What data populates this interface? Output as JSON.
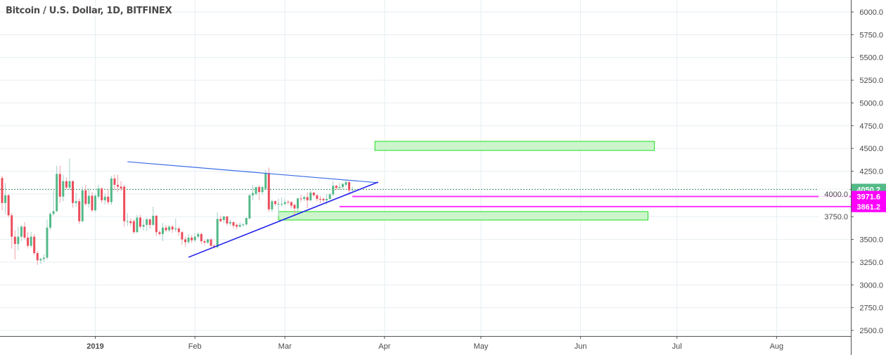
{
  "header": {
    "title": "Bitcoin / U.S. Dollar, 1D, BITFINEX"
  },
  "chart_data": {
    "type": "candlestick",
    "title": "Bitcoin / U.S. Dollar, 1D, BITFINEX",
    "ylim": [
      2450,
      6050
    ],
    "xlim": [
      "2018-12-03",
      "2019-08-23"
    ],
    "y_ticks": [
      "6000.0",
      "5750.0",
      "5500.0",
      "5250.0",
      "5000.0",
      "4750.0",
      "4500.0",
      "4250.0",
      "4000.0",
      "3750.0",
      "3500.0",
      "3250.0",
      "3000.0",
      "2750.0",
      "2500.0"
    ],
    "x_ticks": [
      {
        "label": "2019",
        "date": "2019-01-01"
      },
      {
        "label": "Feb",
        "date": "2019-02-01"
      },
      {
        "label": "Mar",
        "date": "2019-03-01"
      },
      {
        "label": "Apr",
        "date": "2019-04-01"
      },
      {
        "label": "May",
        "date": "2019-05-01"
      },
      {
        "label": "Jun",
        "date": "2019-06-01"
      },
      {
        "label": "Jul",
        "date": "2019-07-01"
      },
      {
        "label": "Aug",
        "date": "2019-08-01"
      }
    ],
    "grid": true,
    "colors": {
      "up": "#53b987",
      "down": "#eb4d5c",
      "trendline_upper": "#3d6fe8",
      "trendline_lower": "#2222ee",
      "zone_fill": "#ccf5cc",
      "zone_border": "#22dd22",
      "level": "#ff33ff",
      "last_price": "#53b987"
    },
    "candle_fields": [
      "date",
      "open",
      "high",
      "low",
      "close"
    ],
    "candles": [
      [
        "2018-12-03",
        4175,
        4200,
        3820,
        3900
      ],
      [
        "2018-12-04",
        3900,
        4120,
        3780,
        3985
      ],
      [
        "2018-12-05",
        3985,
        4000,
        3740,
        3765
      ],
      [
        "2018-12-06",
        3765,
        3790,
        3400,
        3530
      ],
      [
        "2018-12-07",
        3530,
        3600,
        3280,
        3450
      ],
      [
        "2018-12-08",
        3450,
        3640,
        3380,
        3530
      ],
      [
        "2018-12-09",
        3530,
        3660,
        3480,
        3640
      ],
      [
        "2018-12-10",
        3640,
        3690,
        3500,
        3520
      ],
      [
        "2018-12-11",
        3520,
        3580,
        3400,
        3430
      ],
      [
        "2018-12-12",
        3430,
        3580,
        3410,
        3530
      ],
      [
        "2018-12-13",
        3530,
        3560,
        3330,
        3350
      ],
      [
        "2018-12-14",
        3350,
        3370,
        3220,
        3270
      ],
      [
        "2018-12-15",
        3270,
        3300,
        3230,
        3285
      ],
      [
        "2018-12-16",
        3285,
        3340,
        3250,
        3300
      ],
      [
        "2018-12-17",
        3300,
        3720,
        3280,
        3630
      ],
      [
        "2018-12-18",
        3630,
        3800,
        3600,
        3780
      ],
      [
        "2018-12-19",
        3780,
        4050,
        3760,
        3810
      ],
      [
        "2018-12-20",
        3810,
        4310,
        3800,
        4220
      ],
      [
        "2018-12-21",
        4220,
        4310,
        3900,
        3970
      ],
      [
        "2018-12-22",
        3970,
        4210,
        3920,
        4140
      ],
      [
        "2018-12-23",
        4140,
        4180,
        4050,
        4070
      ],
      [
        "2018-12-24",
        4070,
        4390,
        4040,
        4140
      ],
      [
        "2018-12-25",
        4140,
        4150,
        3850,
        3900
      ],
      [
        "2018-12-26",
        3900,
        4010,
        3860,
        3920
      ],
      [
        "2018-12-27",
        3920,
        3950,
        3670,
        3700
      ],
      [
        "2018-12-28",
        3700,
        4080,
        3690,
        4040
      ],
      [
        "2018-12-29",
        4040,
        4100,
        3870,
        3890
      ],
      [
        "2018-12-30",
        3890,
        4060,
        3850,
        3980
      ],
      [
        "2018-12-31",
        3980,
        4020,
        3800,
        3820
      ],
      [
        "2019-01-01",
        3820,
        4000,
        3800,
        3980
      ],
      [
        "2019-01-02",
        3970,
        4100,
        3940,
        4060
      ],
      [
        "2019-01-03",
        4060,
        4070,
        3900,
        3930
      ],
      [
        "2019-01-04",
        3930,
        4010,
        3880,
        3970
      ],
      [
        "2019-01-05",
        3970,
        4050,
        3880,
        3910
      ],
      [
        "2019-01-06",
        3910,
        4200,
        3880,
        4170
      ],
      [
        "2019-01-07",
        4170,
        4210,
        4040,
        4100
      ],
      [
        "2019-01-08",
        4100,
        4210,
        4020,
        4080
      ],
      [
        "2019-01-09",
        4080,
        4140,
        4030,
        4060
      ],
      [
        "2019-01-10",
        4080,
        4100,
        3640,
        3700
      ],
      [
        "2019-01-11",
        3700,
        3790,
        3650,
        3700
      ],
      [
        "2019-01-12",
        3700,
        3730,
        3650,
        3680
      ],
      [
        "2019-01-13",
        3700,
        3720,
        3560,
        3580
      ],
      [
        "2019-01-14",
        3580,
        3770,
        3570,
        3740
      ],
      [
        "2019-01-15",
        3740,
        3770,
        3620,
        3640
      ],
      [
        "2019-01-16",
        3640,
        3720,
        3600,
        3660
      ],
      [
        "2019-01-17",
        3660,
        3740,
        3590,
        3720
      ],
      [
        "2019-01-18",
        3720,
        3730,
        3620,
        3660
      ],
      [
        "2019-01-19",
        3660,
        3860,
        3650,
        3760
      ],
      [
        "2019-01-20",
        3760,
        3770,
        3540,
        3580
      ],
      [
        "2019-01-21",
        3580,
        3600,
        3540,
        3560
      ],
      [
        "2019-01-22",
        3560,
        3680,
        3480,
        3630
      ],
      [
        "2019-01-23",
        3630,
        3660,
        3580,
        3600
      ],
      [
        "2019-01-24",
        3600,
        3660,
        3580,
        3640
      ],
      [
        "2019-01-25",
        3640,
        3660,
        3570,
        3610
      ],
      [
        "2019-01-26",
        3610,
        3730,
        3580,
        3620
      ],
      [
        "2019-01-27",
        3620,
        3640,
        3540,
        3580
      ],
      [
        "2019-01-28",
        3580,
        3590,
        3440,
        3500
      ],
      [
        "2019-01-29",
        3500,
        3530,
        3420,
        3470
      ],
      [
        "2019-01-30",
        3470,
        3560,
        3450,
        3520
      ],
      [
        "2019-01-31",
        3520,
        3550,
        3460,
        3490
      ],
      [
        "2019-02-01",
        3490,
        3570,
        3470,
        3530
      ],
      [
        "2019-02-02",
        3530,
        3580,
        3510,
        3560
      ],
      [
        "2019-02-03",
        3560,
        3570,
        3450,
        3480
      ],
      [
        "2019-02-04",
        3480,
        3500,
        3440,
        3465
      ],
      [
        "2019-02-05",
        3465,
        3510,
        3450,
        3500
      ],
      [
        "2019-02-06",
        3500,
        3510,
        3410,
        3430
      ],
      [
        "2019-02-07",
        3430,
        3450,
        3400,
        3415
      ],
      [
        "2019-02-08",
        3415,
        3800,
        3400,
        3725
      ],
      [
        "2019-02-09",
        3725,
        3760,
        3690,
        3700
      ],
      [
        "2019-02-10",
        3713,
        3760,
        3680,
        3752
      ],
      [
        "2019-02-11",
        3752,
        3760,
        3650,
        3675
      ],
      [
        "2019-02-12",
        3675,
        3720,
        3650,
        3690
      ],
      [
        "2019-02-13",
        3690,
        3700,
        3620,
        3650
      ],
      [
        "2019-02-14",
        3660,
        3680,
        3610,
        3640
      ],
      [
        "2019-02-15",
        3640,
        3690,
        3630,
        3660
      ],
      [
        "2019-02-16",
        3660,
        3680,
        3640,
        3665
      ],
      [
        "2019-02-17",
        3665,
        3740,
        3650,
        3735
      ],
      [
        "2019-02-18",
        3730,
        4000,
        3720,
        3985
      ],
      [
        "2019-02-19",
        3985,
        4100,
        3930,
        4010
      ],
      [
        "2019-02-20",
        4000,
        4080,
        3980,
        4075
      ],
      [
        "2019-02-21",
        4075,
        4100,
        3930,
        4020
      ],
      [
        "2019-02-22",
        4020,
        4090,
        3990,
        4075
      ],
      [
        "2019-02-23",
        4055,
        4260,
        4040,
        4230
      ],
      [
        "2019-02-24",
        4230,
        4290,
        3800,
        3830
      ],
      [
        "2019-02-25",
        3830,
        3940,
        3800,
        3920
      ],
      [
        "2019-02-26",
        3920,
        3930,
        3870,
        3890
      ],
      [
        "2019-02-27",
        3890,
        3950,
        3760,
        3890
      ],
      [
        "2019-02-28",
        3890,
        3960,
        3860,
        3890
      ],
      [
        "2019-03-01",
        3890,
        3940,
        3870,
        3910
      ],
      [
        "2019-03-02",
        3915,
        3930,
        3880,
        3910
      ],
      [
        "2019-03-03",
        3910,
        3920,
        3840,
        3870
      ],
      [
        "2019-03-04",
        3880,
        3890,
        3760,
        3840
      ],
      [
        "2019-03-05",
        3840,
        3960,
        3780,
        3950
      ],
      [
        "2019-03-06",
        3950,
        3990,
        3910,
        3945
      ],
      [
        "2019-03-07",
        3945,
        3980,
        3920,
        3965
      ],
      [
        "2019-03-08",
        3965,
        4020,
        3840,
        3930
      ],
      [
        "2019-03-09",
        3930,
        4040,
        3920,
        4015
      ],
      [
        "2019-03-10",
        4015,
        4020,
        3970,
        3985
      ],
      [
        "2019-03-11",
        3985,
        4000,
        3920,
        3945
      ],
      [
        "2019-03-12",
        3945,
        3980,
        3900,
        3940
      ],
      [
        "2019-03-13",
        3945,
        3960,
        3910,
        3930
      ],
      [
        "2019-03-14",
        3930,
        4000,
        3880,
        3945
      ],
      [
        "2019-03-15",
        3945,
        4010,
        3930,
        3995
      ],
      [
        "2019-03-16",
        3995,
        4140,
        3980,
        4090
      ],
      [
        "2019-03-17",
        4090,
        4100,
        4040,
        4065
      ],
      [
        "2019-03-18",
        4065,
        4120,
        4040,
        4075
      ],
      [
        "2019-03-19",
        4075,
        4120,
        4050,
        4110
      ],
      [
        "2019-03-20",
        4100,
        4150,
        4080,
        4130
      ],
      [
        "2019-03-21",
        4130,
        4140,
        3990,
        4040
      ],
      [
        "2019-03-22",
        4040,
        4080,
        4030,
        4050
      ]
    ],
    "trendlines": [
      {
        "name": "upper",
        "from": [
          "2019-01-11",
          4354
        ],
        "to": [
          "2019-03-30",
          4123
        ]
      },
      {
        "name": "lower",
        "from": [
          "2019-01-30",
          3304
        ],
        "to": [
          "2019-03-30",
          4130
        ]
      }
    ],
    "zones": [
      {
        "from": [
          "2019-03-29",
          4578
        ],
        "to": [
          "2019-06-24",
          4478
        ]
      },
      {
        "from": [
          "2019-02-27",
          3806
        ],
        "to": [
          "2019-06-22",
          3713
        ]
      }
    ],
    "levels": [
      {
        "price": 3971.6,
        "label": "3971.6",
        "start": "2019-03-22"
      },
      {
        "price": 3861.2,
        "label": "3861.2",
        "start": "2019-03-18"
      }
    ],
    "last_price": {
      "price": 4050.2,
      "label": "4050.2"
    }
  }
}
